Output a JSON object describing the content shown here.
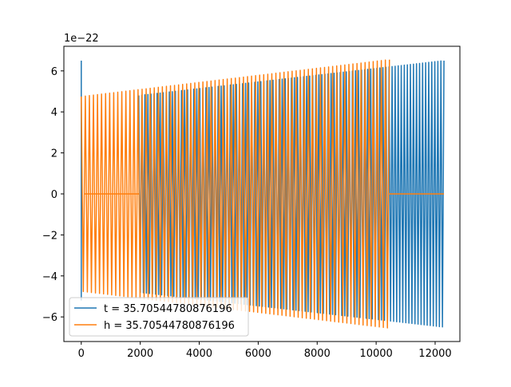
{
  "chart_data": {
    "type": "line",
    "title": "",
    "xlabel": "",
    "ylabel": "",
    "y_offset_label": "1e−22",
    "y_scale": 1e-22,
    "xlim": [
      -590,
      12840
    ],
    "ylim": [
      -7.2,
      7.2
    ],
    "xticks": [
      0,
      2000,
      4000,
      6000,
      8000,
      10000,
      12000
    ],
    "xtick_labels": [
      "0",
      "2000",
      "4000",
      "6000",
      "8000",
      "10000",
      "12000"
    ],
    "yticks": [
      -6,
      -4,
      -2,
      0,
      2,
      4,
      6
    ],
    "ytick_labels": [
      "−6",
      "−4",
      "−2",
      "0",
      "2",
      "4",
      "6"
    ],
    "grid": false,
    "legend_position": "lower-left",
    "series": [
      {
        "name": "t = 35.70544780876196",
        "color": "#1f77b4",
        "segments": [
          {
            "kind": "spike",
            "x": 0,
            "y": [
              6.5,
              -5.2
            ]
          },
          {
            "kind": "oscillation",
            "x_start": 1950,
            "x_end": 12300,
            "cycles": 100,
            "amp_start": 4.8,
            "amp_end": 6.5
          }
        ]
      },
      {
        "name": "h = 35.70544780876196",
        "color": "#ff7f0e",
        "segments": [
          {
            "kind": "oscillation",
            "x_start": 0,
            "x_end": 10450,
            "cycles": 76,
            "amp_start": 4.75,
            "amp_end": 6.55
          },
          {
            "kind": "flat",
            "x_start": 100,
            "x_end": 1950,
            "y": 0
          },
          {
            "kind": "flat",
            "x_start": 10450,
            "x_end": 12300,
            "y": 0
          }
        ]
      }
    ]
  }
}
